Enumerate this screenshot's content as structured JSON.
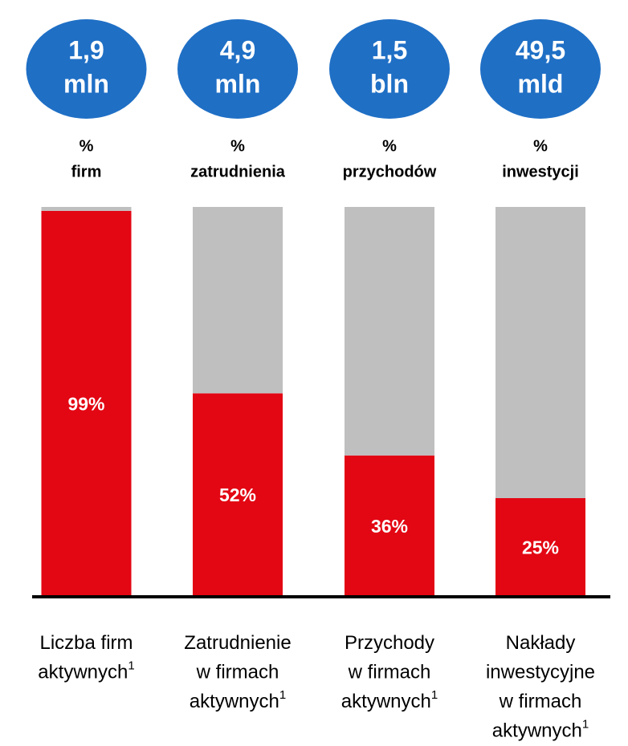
{
  "chart_data": {
    "type": "stacked_bar",
    "totals": [
      [
        "1,9",
        "mln"
      ],
      [
        "4,9",
        "mln"
      ],
      [
        "1,5",
        "bln"
      ],
      [
        "49,5",
        "mld"
      ]
    ],
    "metrics": [
      [
        "%",
        "firm"
      ],
      [
        "%",
        "zatrudnienia"
      ],
      [
        "%",
        "przychodów"
      ],
      [
        "%",
        "inwestycji"
      ]
    ],
    "categories": [
      [
        "Liczba firm",
        "aktywnych"
      ],
      [
        "Zatrudnienie",
        "w firmach",
        "aktywnych"
      ],
      [
        "Przychody",
        "w firmach",
        "aktywnych"
      ],
      [
        "Nakłady",
        "inwestycyjne",
        "w firmach",
        "aktywnych"
      ]
    ],
    "footnote_marker": "1",
    "ylim": [
      0,
      100
    ],
    "series": [
      {
        "color": "#e30613",
        "values": [
          99,
          52,
          36,
          25
        ],
        "value_labels": [
          "99%",
          "52%",
          "36%",
          "25%"
        ]
      },
      {
        "color": "#bfbfbf",
        "values": [
          1,
          48,
          64,
          75
        ]
      }
    ],
    "bubble_color": "#1f6fc5"
  }
}
